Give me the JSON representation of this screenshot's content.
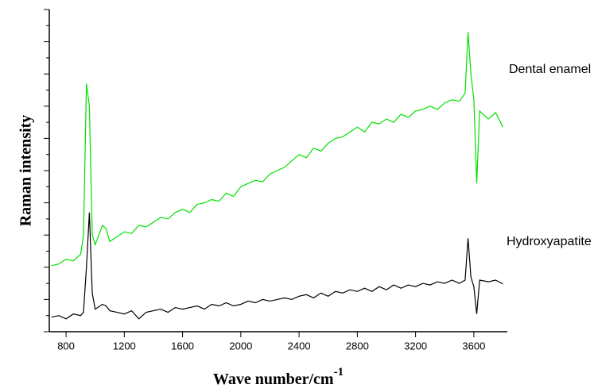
{
  "chart_data": {
    "type": "line",
    "x_label": "Wave number/cm",
    "x_label_superscript": "-1",
    "y_label": "Raman intensity",
    "xlim": [
      685,
      3830
    ],
    "xticks": [
      800,
      1200,
      1600,
      2000,
      2400,
      2800,
      3200,
      3600
    ],
    "ylim": [
      0,
      100
    ],
    "x": [
      700,
      750,
      800,
      850,
      900,
      920,
      940,
      960,
      980,
      1000,
      1050,
      1075,
      1100,
      1150,
      1200,
      1250,
      1300,
      1350,
      1400,
      1450,
      1500,
      1550,
      1600,
      1650,
      1700,
      1750,
      1800,
      1850,
      1900,
      1950,
      2000,
      2050,
      2100,
      2150,
      2200,
      2250,
      2300,
      2350,
      2400,
      2450,
      2500,
      2550,
      2600,
      2650,
      2700,
      2750,
      2800,
      2850,
      2900,
      2950,
      3000,
      3050,
      3100,
      3150,
      3200,
      3250,
      3300,
      3350,
      3400,
      3450,
      3500,
      3540,
      3560,
      3580,
      3600,
      3620,
      3640,
      3700,
      3750,
      3800
    ],
    "series": [
      {
        "name": "Dental enamel",
        "color": "#00e000",
        "values": [
          20.5,
          21,
          22.5,
          22,
          24,
          30,
          77,
          70,
          30,
          27,
          33,
          32,
          28,
          29.5,
          31,
          30.5,
          33,
          32.5,
          34,
          35.5,
          35,
          37,
          38,
          37,
          39.5,
          40,
          41,
          40.5,
          43,
          42,
          45,
          46,
          47,
          46.5,
          49,
          50,
          51,
          53,
          55,
          54,
          57,
          56,
          58.5,
          60,
          60.5,
          62,
          63.5,
          62,
          65,
          64.5,
          66,
          65,
          67.5,
          66.5,
          68.5,
          69,
          70,
          69,
          71,
          72,
          71.5,
          74,
          93,
          80,
          72,
          46,
          68.5,
          66,
          68,
          63.5
        ]
      },
      {
        "name": "Hydroxyapatite",
        "color": "#000000",
        "values": [
          4.5,
          5,
          4,
          5.5,
          5,
          6,
          20,
          37,
          12,
          7,
          8.5,
          8,
          6.5,
          6,
          5.5,
          6.5,
          4,
          6,
          6.5,
          7,
          6,
          7.5,
          7,
          7.5,
          8,
          7,
          8.5,
          8,
          9,
          8,
          8.5,
          9.5,
          9,
          10,
          9.5,
          10,
          10.5,
          10,
          11,
          11.5,
          10.5,
          12,
          11,
          12.5,
          12,
          13,
          12.5,
          13.5,
          12.5,
          14,
          13,
          14.5,
          13.5,
          14.5,
          14,
          15,
          14.5,
          15.5,
          15,
          16,
          15,
          16,
          29,
          17,
          14,
          5.5,
          16,
          15.5,
          16,
          14.8
        ]
      }
    ]
  }
}
